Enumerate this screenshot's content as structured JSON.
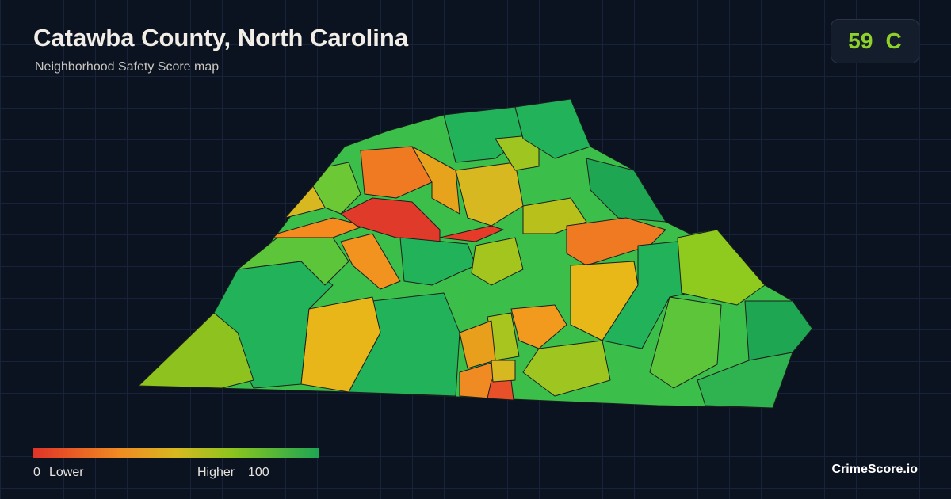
{
  "header": {
    "title": "Catawba County, North Carolina",
    "subtitle": "Neighborhood Safety Score map"
  },
  "score": {
    "value": 59,
    "grade": "C"
  },
  "legend": {
    "min": 0,
    "low_label": "Lower",
    "high_label": "Higher",
    "max": 100
  },
  "brand": "CrimeScore.io"
}
